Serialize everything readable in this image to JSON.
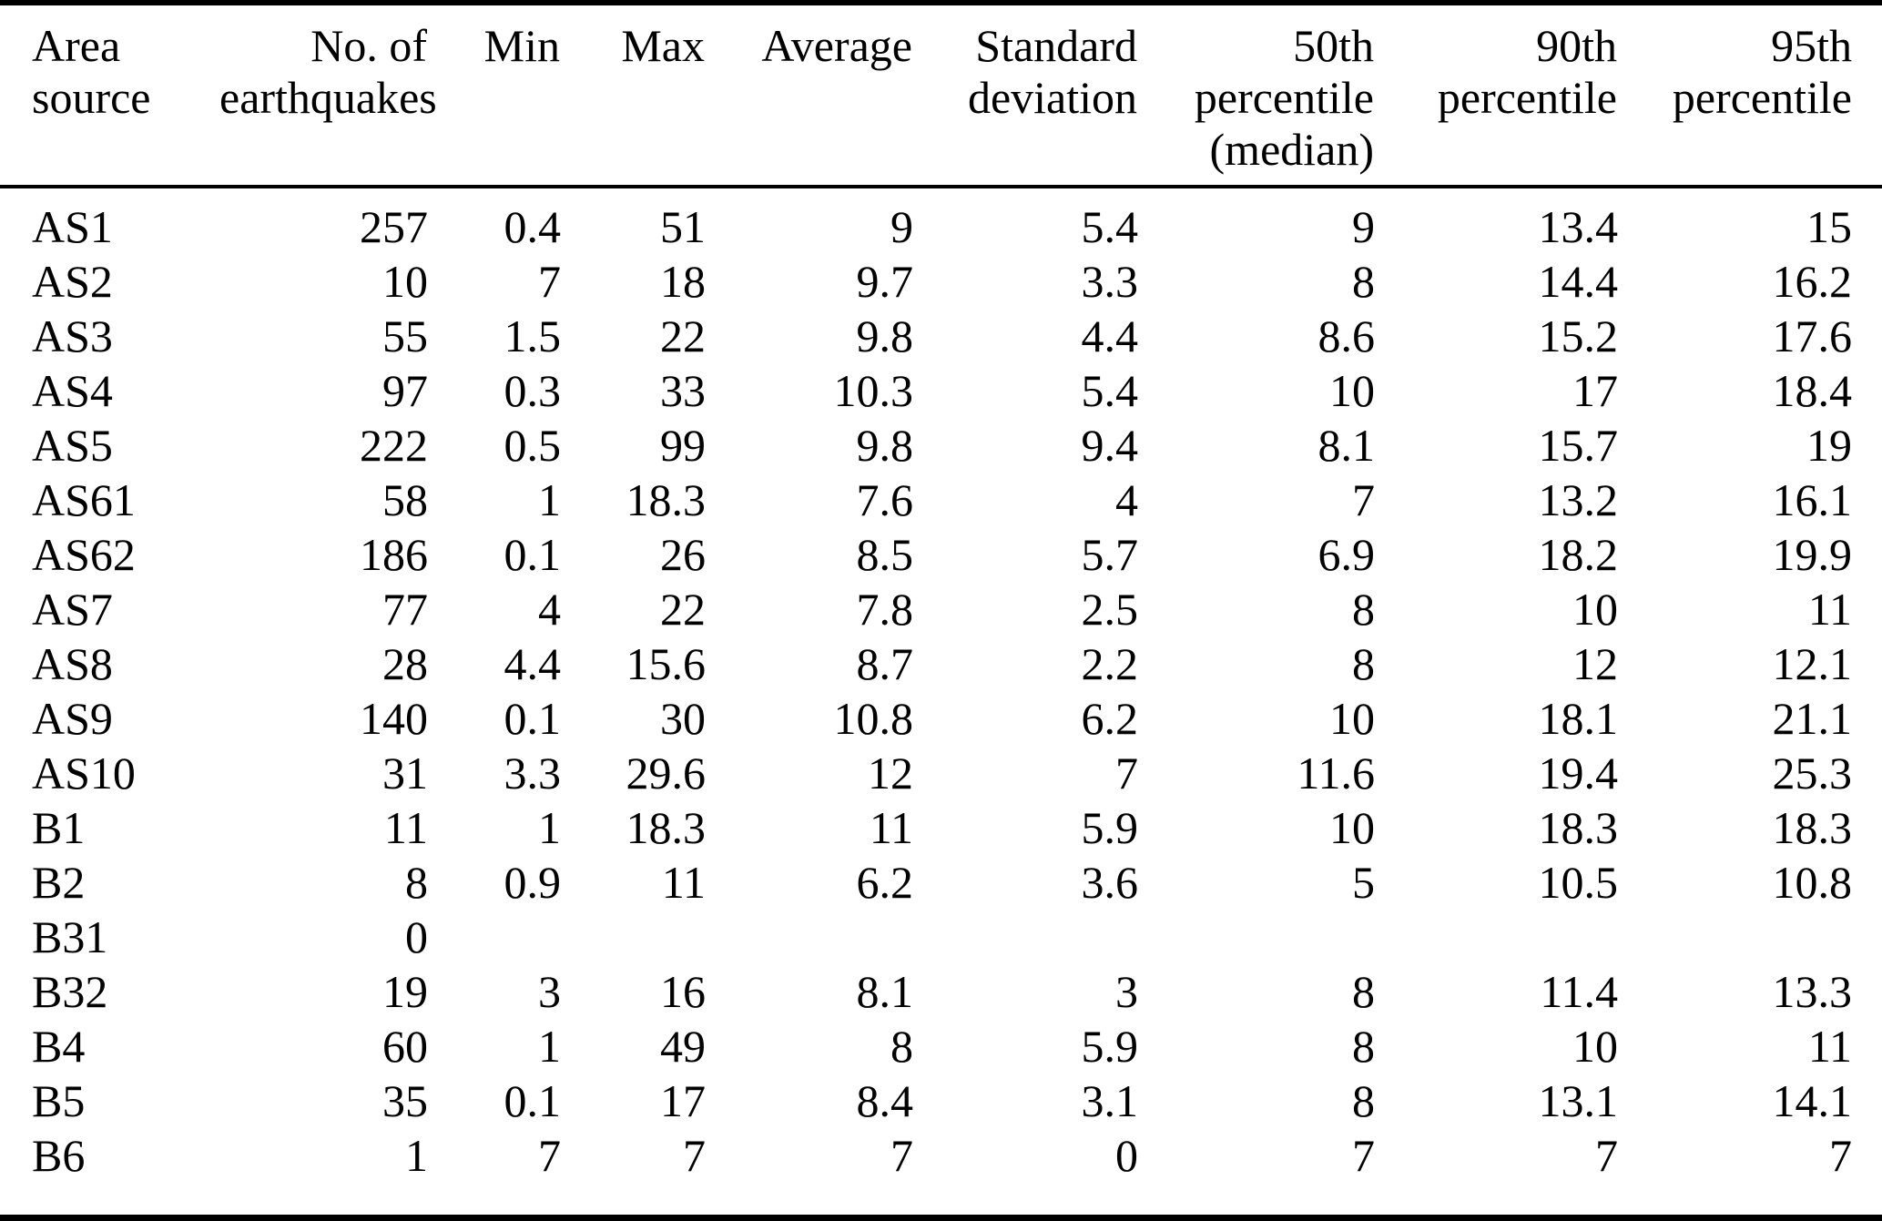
{
  "table": {
    "columns": [
      {
        "label": "Area\nsource",
        "align": "left"
      },
      {
        "label": "No. of\nearthquakes",
        "align": "right"
      },
      {
        "label": "Min",
        "align": "right"
      },
      {
        "label": "Max",
        "align": "right"
      },
      {
        "label": "Average",
        "align": "right"
      },
      {
        "label": "Standard\ndeviation",
        "align": "right"
      },
      {
        "label": "50th\npercentile\n(median)",
        "align": "right"
      },
      {
        "label": "90th\npercentile",
        "align": "right"
      },
      {
        "label": "95th\npercentile",
        "align": "right"
      }
    ],
    "rows": [
      [
        "AS1",
        "257",
        "0.4",
        "51",
        "9",
        "5.4",
        "9",
        "13.4",
        "15"
      ],
      [
        "AS2",
        "10",
        "7",
        "18",
        "9.7",
        "3.3",
        "8",
        "14.4",
        "16.2"
      ],
      [
        "AS3",
        "55",
        "1.5",
        "22",
        "9.8",
        "4.4",
        "8.6",
        "15.2",
        "17.6"
      ],
      [
        "AS4",
        "97",
        "0.3",
        "33",
        "10.3",
        "5.4",
        "10",
        "17",
        "18.4"
      ],
      [
        "AS5",
        "222",
        "0.5",
        "99",
        "9.8",
        "9.4",
        "8.1",
        "15.7",
        "19"
      ],
      [
        "AS61",
        "58",
        "1",
        "18.3",
        "7.6",
        "4",
        "7",
        "13.2",
        "16.1"
      ],
      [
        "AS62",
        "186",
        "0.1",
        "26",
        "8.5",
        "5.7",
        "6.9",
        "18.2",
        "19.9"
      ],
      [
        "AS7",
        "77",
        "4",
        "22",
        "7.8",
        "2.5",
        "8",
        "10",
        "11"
      ],
      [
        "AS8",
        "28",
        "4.4",
        "15.6",
        "8.7",
        "2.2",
        "8",
        "12",
        "12.1"
      ],
      [
        "AS9",
        "140",
        "0.1",
        "30",
        "10.8",
        "6.2",
        "10",
        "18.1",
        "21.1"
      ],
      [
        "AS10",
        "31",
        "3.3",
        "29.6",
        "12",
        "7",
        "11.6",
        "19.4",
        "25.3"
      ],
      [
        "B1",
        "11",
        "1",
        "18.3",
        "11",
        "5.9",
        "10",
        "18.3",
        "18.3"
      ],
      [
        "B2",
        "8",
        "0.9",
        "11",
        "6.2",
        "3.6",
        "5",
        "10.5",
        "10.8"
      ],
      [
        "B31",
        "0",
        "",
        "",
        "",
        "",
        "",
        "",
        ""
      ],
      [
        "B32",
        "19",
        "3",
        "16",
        "8.1",
        "3",
        "8",
        "11.4",
        "13.3"
      ],
      [
        "B4",
        "60",
        "1",
        "49",
        "8",
        "5.9",
        "8",
        "10",
        "11"
      ],
      [
        "B5",
        "35",
        "0.1",
        "17",
        "8.4",
        "3.1",
        "8",
        "13.1",
        "14.1"
      ],
      [
        "B6",
        "1",
        "7",
        "7",
        "7",
        "0",
        "7",
        "7",
        "7"
      ]
    ]
  },
  "colors": {
    "text": "#000000",
    "background": "#ffffff",
    "rule": "#000000"
  }
}
